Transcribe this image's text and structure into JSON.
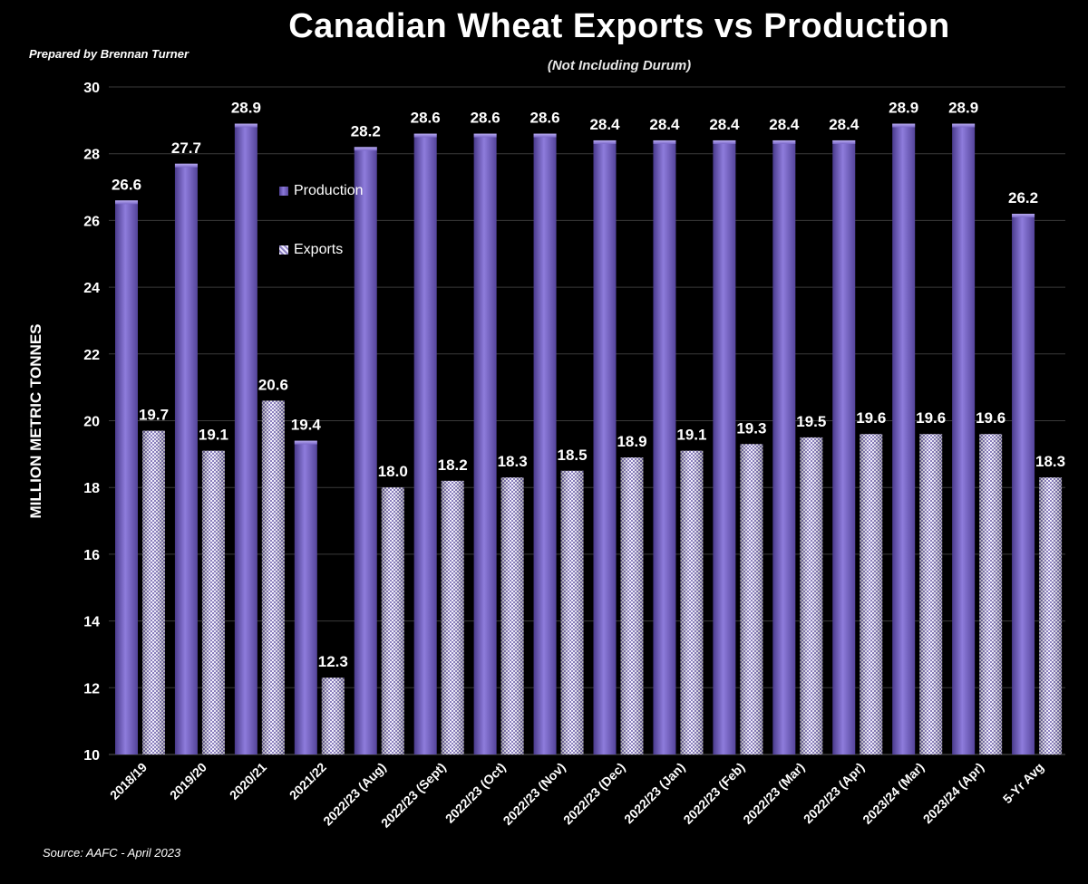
{
  "header": {
    "title": "Canadian Wheat Exports vs Production",
    "subtitle": "(Not Including Durum)",
    "credit": "Prepared by Brennan Turner"
  },
  "footer": {
    "source": "Source: AAFC -  April 2023"
  },
  "colors": {
    "background": "#000000",
    "production": "#6f5fc0",
    "exports": "#c9c2ea",
    "text": "#ffffff"
  },
  "chart_data": {
    "type": "bar",
    "title": "Canadian Wheat Exports vs Production",
    "subtitle": "(Not Including Durum)",
    "xlabel": "",
    "ylabel": "MILLION METRIC TONNES",
    "ylim": [
      10,
      30
    ],
    "yticks": [
      10,
      12,
      14,
      16,
      18,
      20,
      22,
      24,
      26,
      28,
      30
    ],
    "grid": true,
    "legend_placement": "top-left inside plot",
    "categories": [
      "2018/19",
      "2019/20",
      "2020/21",
      "2021/22",
      "2022/23 (Aug)",
      "2022/23 (Sept)",
      "2022/23 (Oct)",
      "2022/23 (Nov)",
      "2022/23 (Dec)",
      "2022/23 (Jan)",
      "2022/23 (Feb)",
      "2022/23 (Mar)",
      "2022/23 (Apr)",
      "2023/24 (Mar)",
      "2023/24 (Apr)",
      "5-Yr Avg"
    ],
    "series": [
      {
        "name": "Production",
        "values": [
          26.6,
          27.7,
          28.9,
          19.4,
          28.2,
          28.6,
          28.6,
          28.6,
          28.4,
          28.4,
          28.4,
          28.4,
          28.4,
          28.9,
          28.9,
          26.2
        ],
        "labels": [
          "26.6",
          "27.7",
          "28.9",
          "19.4",
          "28.2",
          "28.6",
          "28.6",
          "28.6",
          "28.4",
          "28.4",
          "28.4",
          "28.4",
          "28.4",
          "28.9",
          "28.9",
          "26.2"
        ]
      },
      {
        "name": "Exports",
        "values": [
          19.7,
          19.1,
          20.6,
          12.3,
          18.0,
          18.2,
          18.3,
          18.5,
          18.9,
          19.1,
          19.3,
          19.5,
          19.6,
          19.6,
          19.6,
          18.3
        ],
        "labels": [
          "19.7",
          "19.1",
          "20.6",
          "12.3",
          "18.0",
          "18.2",
          "18.3",
          "18.5",
          "18.9",
          "19.1",
          "19.3",
          "19.5",
          "19.6",
          "19.6",
          "19.6",
          "18.3"
        ]
      }
    ]
  }
}
